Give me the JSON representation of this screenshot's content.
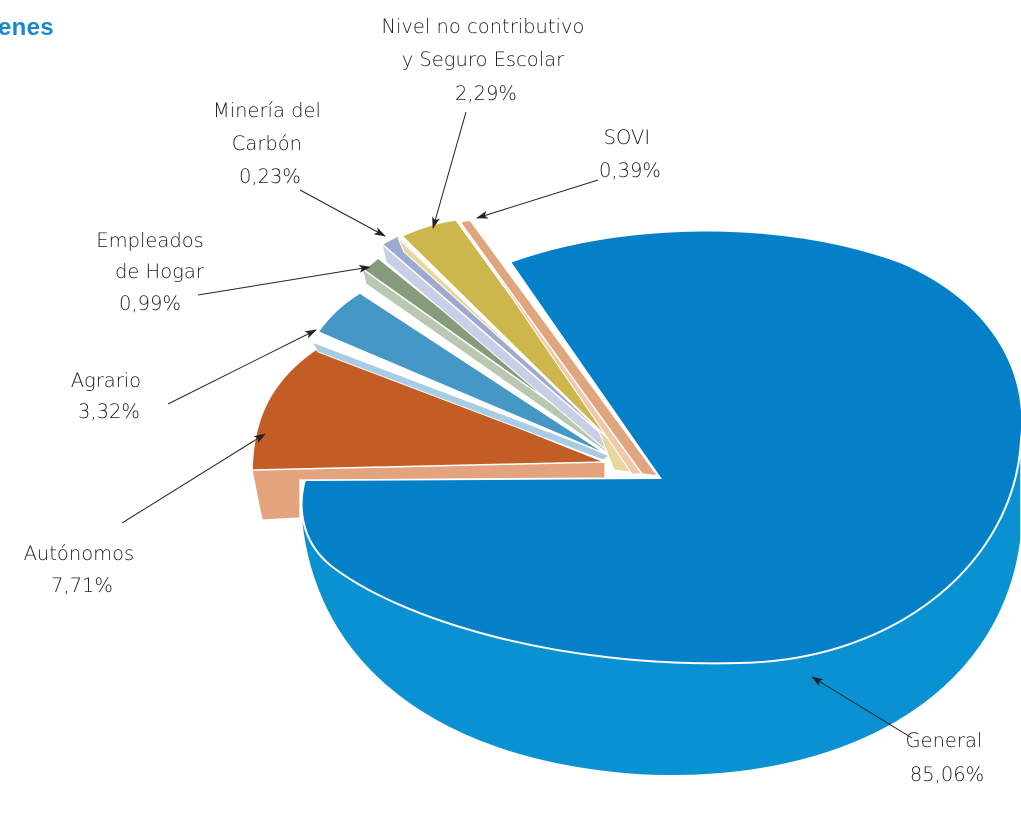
{
  "title": "enes",
  "chart_data": {
    "type": "pie",
    "style": "3d-exploded",
    "slices": [
      {
        "key": "general",
        "name": "General",
        "value_label": "85,06%",
        "value": 85.06,
        "color": "#0380c8",
        "side_color": "#0a91d2"
      },
      {
        "key": "autonomos",
        "name": "Autónomos",
        "value_label": "7,71%",
        "value": 7.71,
        "color": "#c15d25",
        "side_color": "#e2a37d"
      },
      {
        "key": "agrario",
        "name": "Agrario",
        "value_label": "3,32%",
        "value": 3.32,
        "color": "#4597c6",
        "side_color": "#a7cce4"
      },
      {
        "key": "hogar",
        "name_lines": [
          "Empleados",
          "de Hogar"
        ],
        "value_label": "0,99%",
        "value": 0.99,
        "color": "#869a7c",
        "side_color": "#bac8b2"
      },
      {
        "key": "mineria",
        "name_lines": [
          "Minería del",
          "Carbón"
        ],
        "value_label": "0,23%",
        "value": 0.23,
        "color": "#9ea9cf",
        "side_color": "#c8cee6"
      },
      {
        "key": "nivel",
        "name_lines": [
          "Nivel no contributivo",
          "y Seguro Escolar"
        ],
        "value_label": "2,29%",
        "value": 2.29,
        "color": "#cdb64c",
        "side_color": "#e6d89b"
      },
      {
        "key": "sovi",
        "name": "SOVI",
        "value_label": "0,39%",
        "value": 0.39,
        "color": "#dfa57c",
        "side_color": "#efc9aa"
      }
    ]
  }
}
